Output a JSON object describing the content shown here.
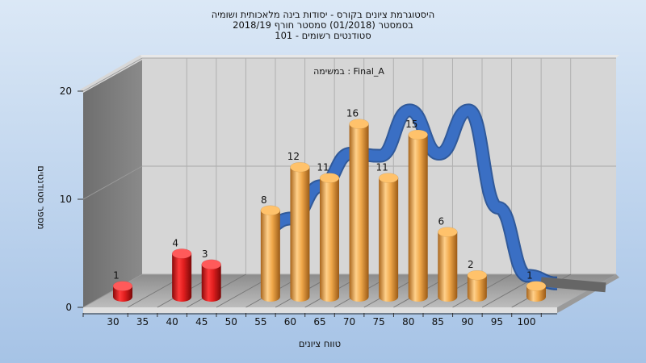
{
  "chart_data": {
    "type": "bar",
    "title_lines": [
      "היסטוגרמת ציונים בקורס - יסודות בינה מלאכותית ושומיה",
      "בסמסטר  (01/2018)  סמסטר חורף  2018/19",
      "סטודנטים רשומים - 101"
    ],
    "subtitle": "במשימה : Final_A",
    "xlabel": "טווח ציונים",
    "ylabel": "מספר סטודנטים",
    "x_ticks": [
      "30",
      "35",
      "40",
      "45",
      "50",
      "55",
      "60",
      "65",
      "70",
      "75",
      "80",
      "85",
      "90",
      "95",
      "100"
    ],
    "y_ticks": [
      "0",
      "10",
      "20"
    ],
    "ylim": [
      0,
      20
    ],
    "grid": true,
    "bars": [
      {
        "x": 30,
        "value": 1,
        "label": "1",
        "color": "red"
      },
      {
        "x": 40,
        "value": 4,
        "label": "4",
        "color": "red"
      },
      {
        "x": 45,
        "value": 3,
        "label": "3",
        "color": "red"
      },
      {
        "x": 55,
        "value": 8,
        "label": "8",
        "color": "orange"
      },
      {
        "x": 60,
        "value": 12,
        "label": "12",
        "color": "orange"
      },
      {
        "x": 65,
        "value": 11,
        "label": "11",
        "color": "orange"
      },
      {
        "x": 70,
        "value": 16,
        "label": "16",
        "color": "orange"
      },
      {
        "x": 75,
        "value": 11,
        "label": "11",
        "color": "orange"
      },
      {
        "x": 80,
        "value": 15,
        "label": "15",
        "color": "orange"
      },
      {
        "x": 85,
        "value": 6,
        "label": "6",
        "color": "orange"
      },
      {
        "x": 90,
        "value": 2,
        "label": "2",
        "color": "orange"
      },
      {
        "x": 100,
        "value": 1,
        "label": "1",
        "color": "orange"
      }
    ],
    "curve": {
      "color": "#3a6fc4",
      "points": [
        [
          50,
          5.5
        ],
        [
          55,
          6.5
        ],
        [
          60,
          9.5
        ],
        [
          65,
          12.5
        ],
        [
          70,
          12.3
        ],
        [
          75,
          16.5
        ],
        [
          80,
          12.5
        ],
        [
          85,
          16.5
        ],
        [
          90,
          7.5
        ],
        [
          95,
          1.2
        ],
        [
          100,
          0.5
        ]
      ]
    },
    "colors": {
      "red": "#e01e1e",
      "orange": "#f0a84a",
      "curve": "#3a6fc4",
      "background_top": "#cfe0f3",
      "background_bottom": "#9dbde2"
    }
  }
}
